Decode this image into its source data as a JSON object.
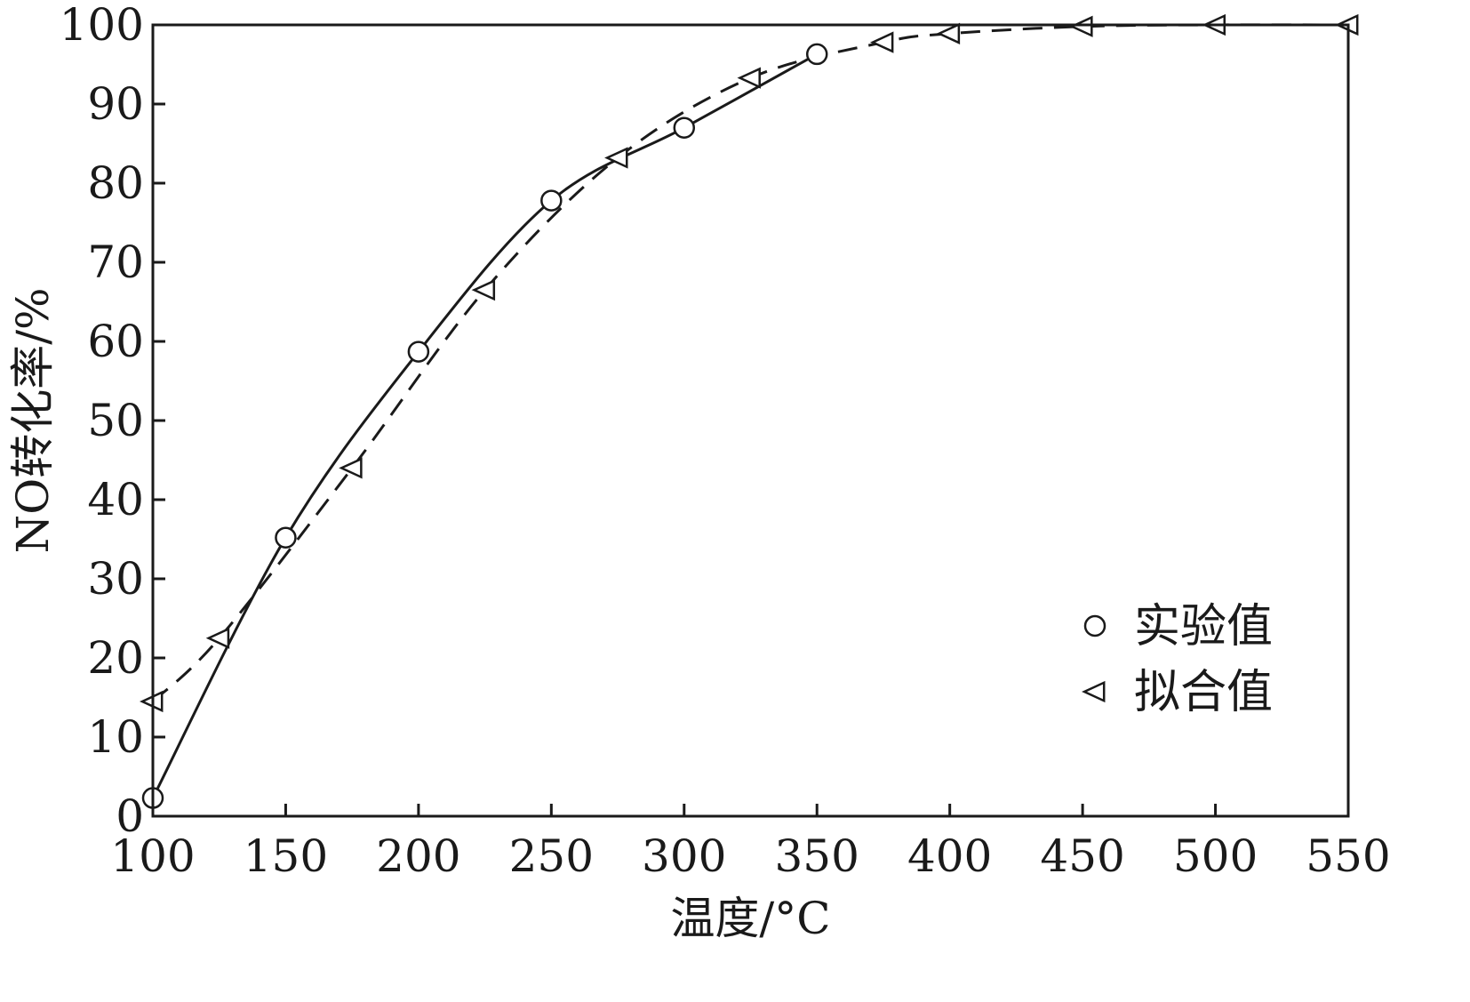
{
  "chart_data": {
    "type": "line",
    "xlabel": "温度/°C",
    "ylabel": "NO转化率/%",
    "xlim": [
      100,
      550
    ],
    "ylim": [
      0,
      100
    ],
    "x_ticks": [
      100,
      150,
      200,
      250,
      300,
      350,
      400,
      450,
      500,
      550
    ],
    "y_ticks": [
      0,
      10,
      20,
      30,
      40,
      50,
      60,
      70,
      80,
      90,
      100
    ],
    "grid": false,
    "legend_position": "lower-right",
    "series": [
      {
        "name": "实验值",
        "marker": "circle",
        "line_style": "solid",
        "x": [
          100,
          150,
          200,
          250,
          300,
          350
        ],
        "y": [
          2.3,
          35.2,
          58.7,
          77.8,
          87.0,
          96.3
        ]
      },
      {
        "name": "拟合值",
        "marker": "triangle-left",
        "line_style": "dashed",
        "x": [
          100,
          125,
          175,
          225,
          275,
          325,
          375,
          400,
          450,
          500,
          550
        ],
        "y": [
          14.5,
          22.5,
          44.0,
          66.5,
          83.2,
          93.3,
          97.8,
          98.9,
          99.8,
          100.0,
          100.0
        ]
      }
    ]
  },
  "colors": {
    "line": "#1a1a1a",
    "background": "#ffffff"
  }
}
